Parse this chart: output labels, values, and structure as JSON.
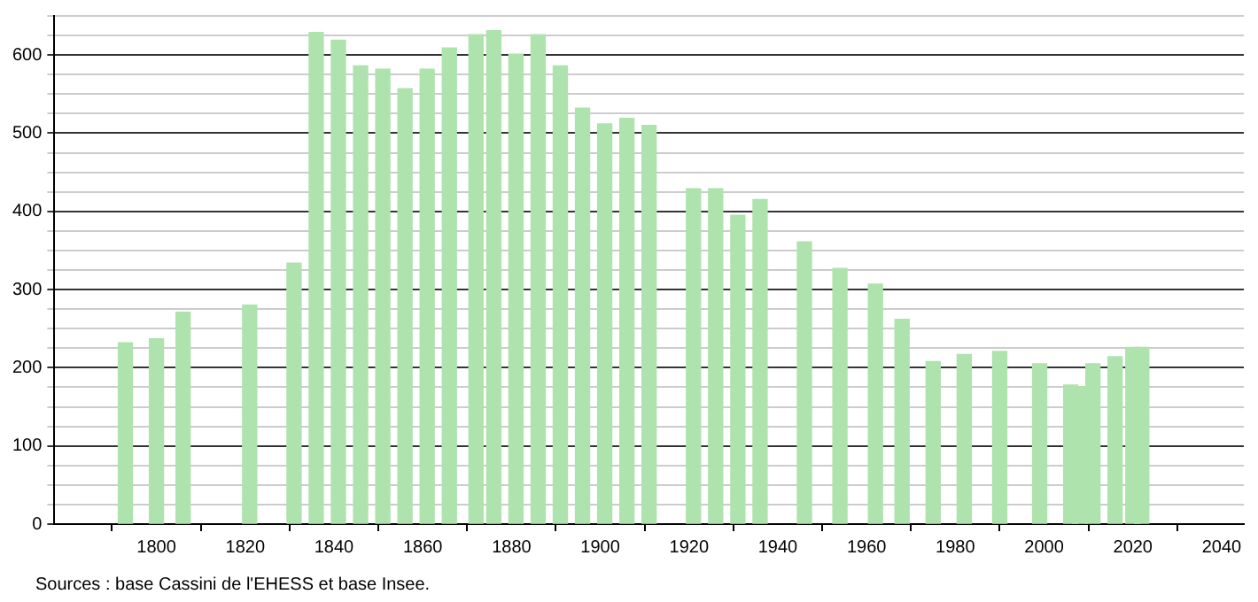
{
  "chart_data": {
    "type": "bar",
    "x": [
      1793,
      1800,
      1806,
      1821,
      1831,
      1836,
      1841,
      1846,
      1851,
      1856,
      1861,
      1866,
      1872,
      1876,
      1881,
      1886,
      1891,
      1896,
      1901,
      1906,
      1911,
      1921,
      1926,
      1931,
      1936,
      1946,
      1954,
      1962,
      1968,
      1975,
      1982,
      1990,
      1999,
      2006,
      2008,
      2011,
      2016,
      2020,
      2022
    ],
    "values": [
      232,
      237,
      271,
      280,
      334,
      629,
      619,
      586,
      582,
      557,
      582,
      609,
      626,
      631,
      601,
      626,
      586,
      532,
      512,
      519,
      510,
      429,
      429,
      395,
      415,
      361,
      327,
      307,
      262,
      208,
      217,
      221,
      205,
      178,
      176,
      205,
      214,
      226,
      226
    ],
    "color": "#aee3ae",
    "xlim": [
      1777,
      2045
    ],
    "xticks": [
      1800,
      1820,
      1840,
      1860,
      1880,
      1900,
      1920,
      1940,
      1960,
      1980,
      2000,
      2020,
      2040
    ],
    "ylim": [
      0,
      650
    ],
    "yticks": [
      0,
      {
        "value": 25,
        "label": null
      },
      {
        "value": 50,
        "label": null
      },
      {
        "value": 75,
        "label": null
      },
      100,
      {
        "value": 125,
        "label": null
      },
      {
        "value": 150,
        "label": null
      },
      {
        "value": 175,
        "label": null
      },
      200,
      {
        "value": 225,
        "label": null
      },
      {
        "value": 250,
        "label": null
      },
      {
        "value": 275,
        "label": null
      },
      300,
      {
        "value": 325,
        "label": null
      },
      {
        "value": 350,
        "label": null
      },
      {
        "value": 375,
        "label": null
      },
      400,
      {
        "value": 425,
        "label": null
      },
      {
        "value": 450,
        "label": null
      },
      {
        "value": 475,
        "label": null
      },
      500,
      {
        "value": 525,
        "label": null
      },
      {
        "value": 550,
        "label": null
      },
      {
        "value": 575,
        "label": null
      },
      600,
      {
        "value": 625,
        "label": null
      },
      {
        "value": 650,
        "label": null
      }
    ],
    "grid": "y",
    "legend": false,
    "annotations": [
      "Sources : base Cassini de l'EHESS et base Insee."
    ]
  }
}
